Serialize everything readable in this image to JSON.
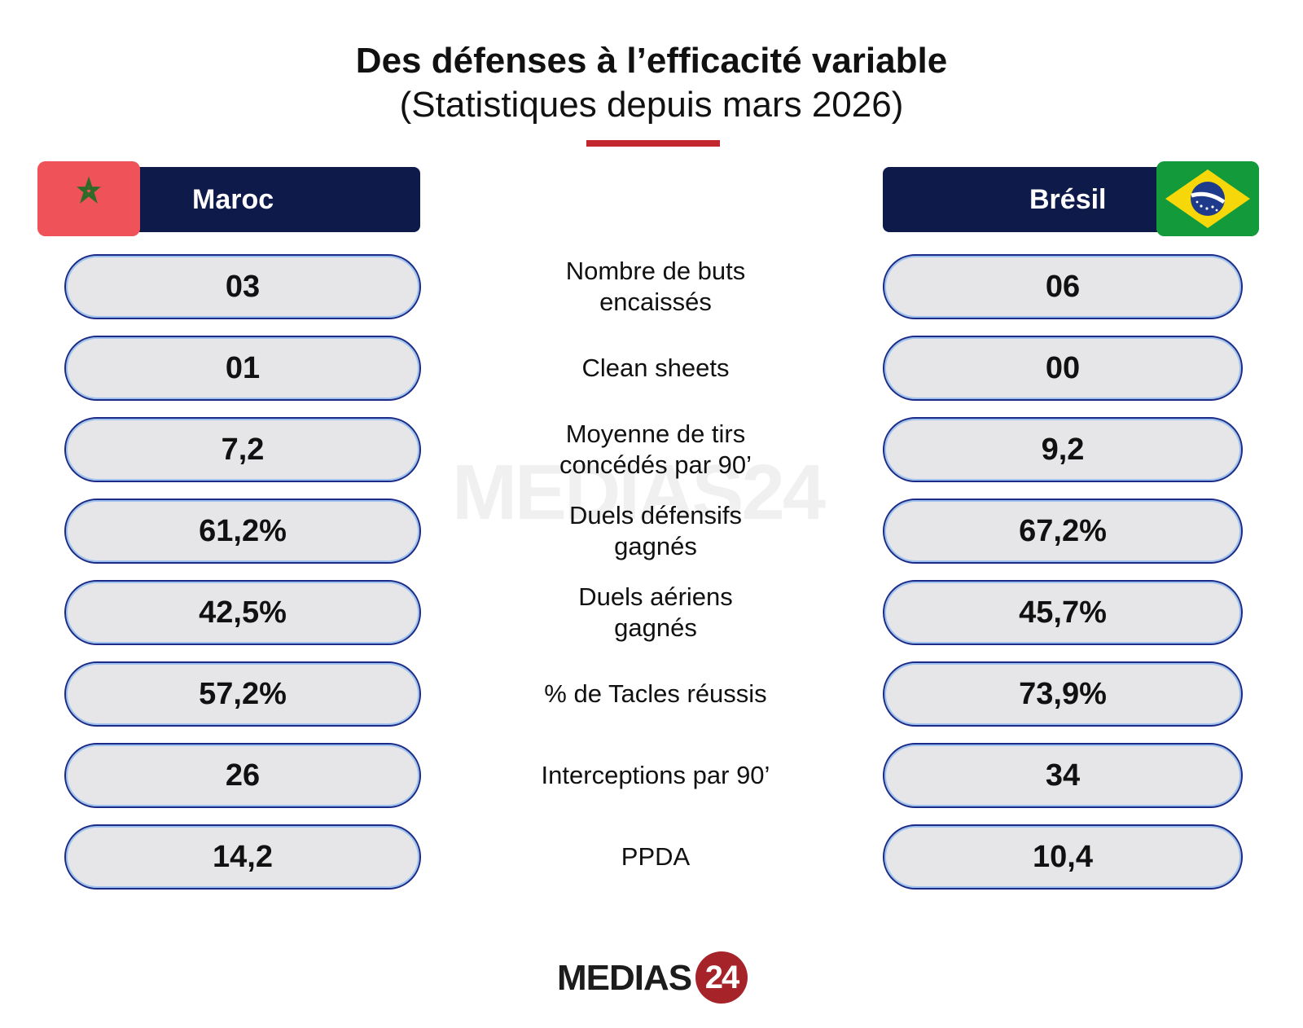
{
  "header": {
    "title_line1": "Des défenses à l’efficacité variable",
    "title_line2": "(Statistiques depuis mars 2026)"
  },
  "teams": {
    "left": {
      "name": "Maroc",
      "flag_icon": "morocco-flag-icon"
    },
    "right": {
      "name": "Brésil",
      "flag_icon": "brazil-flag-icon"
    }
  },
  "rows": [
    {
      "label": "Nombre de buts\nencaissés",
      "left": "03",
      "right": "06"
    },
    {
      "label": "Clean sheets",
      "left": "01",
      "right": "00"
    },
    {
      "label": "Moyenne de tirs\nconcédés par 90’",
      "left": "7,2",
      "right": "9,2"
    },
    {
      "label": "Duels défensifs\ngagnés",
      "left": "61,2%",
      "right": "67,2%"
    },
    {
      "label": "Duels aériens\ngagnés",
      "left": "42,5%",
      "right": "45,7%"
    },
    {
      "label": "% de Tacles réussis",
      "left": "57,2%",
      "right": "73,9%"
    },
    {
      "label": "Interceptions par 90’",
      "left": "26",
      "right": "34"
    },
    {
      "label": "PPDA",
      "left": "14,2",
      "right": "10,4"
    }
  ],
  "watermark": {
    "text": "MEDIAS24"
  },
  "logo": {
    "word": "MEDIAS",
    "number": "24"
  },
  "colors": {
    "accent_red": "#c1272d",
    "navy": "#0e1b4a",
    "pill_fill": "#e6e6e8",
    "pill_border": "#1a2a86"
  }
}
